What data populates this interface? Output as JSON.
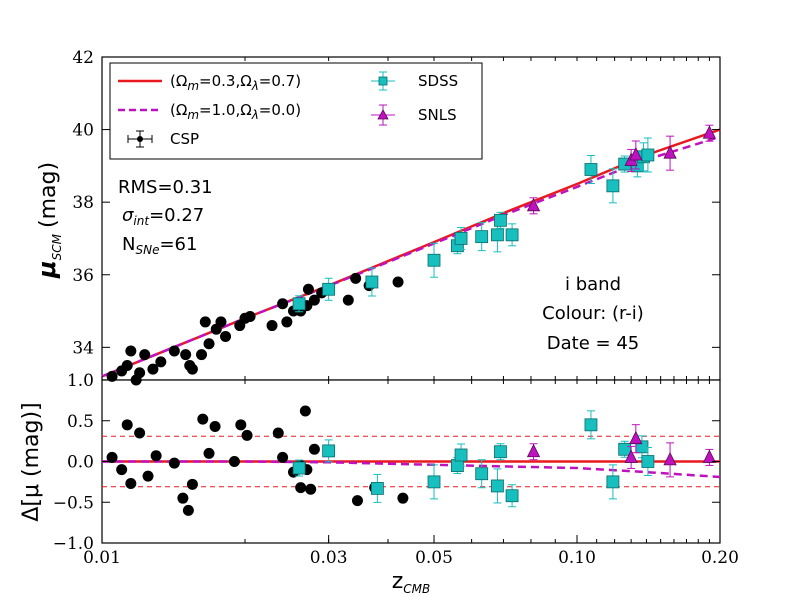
{
  "chart_data": {
    "type": "scatter",
    "xscale": "log",
    "xlim": [
      0.01,
      0.2
    ],
    "x_ticks": [
      0.01,
      0.03,
      0.05,
      0.1,
      0.2
    ],
    "x_tick_labels": [
      "0.01",
      "0.03",
      "0.05",
      "0.10",
      "0.20"
    ],
    "xlabel": "z",
    "xlabel_sub": "CMB",
    "top_panel": {
      "ylim": [
        33.1,
        42.0
      ],
      "y_ticks": [
        34,
        36,
        38,
        40,
        42
      ],
      "y_tick_labels": [
        "34",
        "36",
        "38",
        "40",
        "42"
      ],
      "ylabel": "μ",
      "ylabel_sub": "SCM",
      "ylabel_unit": "(mag)",
      "stats": {
        "rms": "RMS=0.31",
        "sigma_prefix": "σ",
        "sigma_sub": "int",
        "sigma_value": "=0.27",
        "n_prefix": "N",
        "n_sub": "SNe",
        "n_value": "=61"
      },
      "annotation": [
        "i band",
        "Colour: (r-i)",
        "Date = 45"
      ],
      "legend": [
        {
          "label": "(Ω",
          "sub1": "m",
          "mid": "=0.3,Ω",
          "sub2": "λ",
          "end": "=0.7)"
        },
        {
          "label": "(Ω",
          "sub1": "m",
          "mid": "=1.0,Ω",
          "sub2": "λ",
          "end": "=0.0)"
        },
        {
          "label": "CSP"
        },
        {
          "label": "SDSS"
        },
        {
          "label": "SNLS"
        }
      ],
      "lines": [
        {
          "name": "(Ωm=0.3,ΩΛ=0.7)",
          "color": "#e8191f",
          "style": "solid",
          "x": [
            0.01,
            0.02,
            0.03,
            0.05,
            0.07,
            0.1,
            0.14,
            0.2
          ],
          "y": [
            33.2,
            34.8,
            35.7,
            36.9,
            37.7,
            38.5,
            39.3,
            40.0
          ]
        },
        {
          "name": "(Ωm=1.0,ΩΛ=0.0)",
          "color": "#bf12bf",
          "style": "dashed",
          "x": [
            0.01,
            0.02,
            0.03,
            0.05,
            0.07,
            0.1,
            0.14,
            0.2
          ],
          "y": [
            33.2,
            34.8,
            35.69,
            36.86,
            37.64,
            38.42,
            39.17,
            39.8
          ]
        }
      ],
      "series": [
        {
          "name": "CSP",
          "color": "#000000",
          "marker": "circle",
          "points": [
            [
              0.0105,
              33.2
            ],
            [
              0.011,
              33.35
            ],
            [
              0.0113,
              33.5
            ],
            [
              0.0115,
              33.9
            ],
            [
              0.0118,
              33.1
            ],
            [
              0.012,
              33.3
            ],
            [
              0.0123,
              33.8
            ],
            [
              0.0128,
              33.4
            ],
            [
              0.0133,
              33.6
            ],
            [
              0.0142,
              33.9
            ],
            [
              0.015,
              33.8
            ],
            [
              0.0153,
              33.5
            ],
            [
              0.0155,
              33.4
            ],
            [
              0.0162,
              33.8
            ],
            [
              0.0165,
              34.7
            ],
            [
              0.0168,
              34.1
            ],
            [
              0.0174,
              34.5
            ],
            [
              0.0178,
              34.7
            ],
            [
              0.0182,
              34.3
            ],
            [
              0.0195,
              34.6
            ],
            [
              0.02,
              34.8
            ],
            [
              0.0205,
              34.85
            ],
            [
              0.0228,
              34.6
            ],
            [
              0.024,
              35.2
            ],
            [
              0.0245,
              34.7
            ],
            [
              0.0253,
              35.0
            ],
            [
              0.0262,
              35.0
            ],
            [
              0.027,
              35.15
            ],
            [
              0.0272,
              35.6
            ],
            [
              0.028,
              35.3
            ],
            [
              0.029,
              35.5
            ],
            [
              0.03,
              35.6
            ],
            [
              0.033,
              35.3
            ],
            [
              0.0342,
              35.9
            ],
            [
              0.0365,
              35.7
            ],
            [
              0.042,
              35.8
            ]
          ]
        },
        {
          "name": "SDSS",
          "color": "#17bfbf",
          "marker": "square",
          "points": [
            [
              0.026,
              35.2
            ],
            [
              0.03,
              35.6
            ],
            [
              0.037,
              35.8
            ],
            [
              0.05,
              36.4
            ],
            [
              0.056,
              36.8
            ],
            [
              0.057,
              37.0
            ],
            [
              0.063,
              37.05
            ],
            [
              0.068,
              37.1
            ],
            [
              0.069,
              37.5
            ],
            [
              0.073,
              37.1
            ],
            [
              0.107,
              38.9
            ],
            [
              0.119,
              38.45
            ],
            [
              0.126,
              39.05
            ],
            [
              0.134,
              39.0
            ],
            [
              0.138,
              39.25
            ],
            [
              0.141,
              39.3
            ]
          ]
        },
        {
          "name": "SNLS",
          "color": "#bf12bf",
          "marker": "triangle",
          "points": [
            [
              0.081,
              37.9
            ],
            [
              0.13,
              39.15
            ],
            [
              0.133,
              39.3
            ],
            [
              0.157,
              39.35
            ],
            [
              0.19,
              39.9
            ]
          ]
        }
      ]
    },
    "bottom_panel": {
      "ylim": [
        -1.0,
        1.0
      ],
      "y_ticks": [
        -1.0,
        -0.5,
        0.0,
        0.5,
        1.0
      ],
      "y_tick_labels": [
        "−1.0",
        "−0.5",
        "0.0",
        "0.5",
        "1.0"
      ],
      "ylabel": "Δ[μ (mag)]",
      "rms_band": [
        -0.31,
        0.31
      ],
      "lines": [
        {
          "name": "(Ωm=0.3,ΩΛ=0.7)",
          "color": "#e8191f",
          "style": "solid",
          "x": [
            0.01,
            0.2
          ],
          "y": [
            0.0,
            0.0
          ]
        },
        {
          "name": "(Ωm=1.0,ΩΛ=0.0)",
          "color": "#bf12bf",
          "style": "dashed",
          "x": [
            0.01,
            0.02,
            0.03,
            0.05,
            0.07,
            0.1,
            0.14,
            0.2
          ],
          "y": [
            0.0,
            0.0,
            -0.01,
            -0.04,
            -0.06,
            -0.08,
            -0.13,
            -0.19
          ]
        }
      ],
      "series": [
        {
          "name": "CSP",
          "color": "#000000",
          "marker": "circle",
          "points": [
            [
              0.0105,
              0.05
            ],
            [
              0.011,
              -0.1
            ],
            [
              0.0113,
              0.45
            ],
            [
              0.0115,
              -0.27
            ],
            [
              0.012,
              0.35
            ],
            [
              0.0125,
              -0.18
            ],
            [
              0.013,
              0.07
            ],
            [
              0.0142,
              -0.02
            ],
            [
              0.0148,
              -0.45
            ],
            [
              0.0152,
              -0.6
            ],
            [
              0.0155,
              -0.28
            ],
            [
              0.0163,
              0.52
            ],
            [
              0.0168,
              0.1
            ],
            [
              0.0173,
              0.43
            ],
            [
              0.019,
              0.0
            ],
            [
              0.0196,
              0.45
            ],
            [
              0.0202,
              0.32
            ],
            [
              0.0235,
              0.35
            ],
            [
              0.024,
              0.05
            ],
            [
              0.0253,
              -0.13
            ],
            [
              0.0262,
              -0.05
            ],
            [
              0.0268,
              0.62
            ],
            [
              0.027,
              -0.1
            ],
            [
              0.028,
              0.15
            ],
            [
              0.0262,
              -0.32
            ],
            [
              0.0275,
              -0.34
            ],
            [
              0.0345,
              -0.48
            ],
            [
              0.0375,
              -0.32
            ],
            [
              0.043,
              -0.45
            ]
          ]
        },
        {
          "name": "SDSS",
          "color": "#17bfbf",
          "marker": "square",
          "points": [
            [
              0.026,
              -0.08
            ],
            [
              0.03,
              0.13
            ],
            [
              0.038,
              -0.33
            ],
            [
              0.05,
              -0.25
            ],
            [
              0.056,
              -0.05
            ],
            [
              0.057,
              0.08
            ],
            [
              0.063,
              -0.15
            ],
            [
              0.068,
              -0.3
            ],
            [
              0.069,
              0.12
            ],
            [
              0.073,
              -0.42
            ],
            [
              0.107,
              0.45
            ],
            [
              0.119,
              -0.25
            ],
            [
              0.126,
              0.15
            ],
            [
              0.137,
              0.18
            ],
            [
              0.141,
              0.0
            ]
          ]
        },
        {
          "name": "SNLS",
          "color": "#bf12bf",
          "marker": "triangle",
          "points": [
            [
              0.081,
              0.12
            ],
            [
              0.13,
              0.05
            ],
            [
              0.133,
              0.28
            ],
            [
              0.157,
              0.02
            ],
            [
              0.19,
              0.05
            ]
          ]
        }
      ]
    }
  }
}
